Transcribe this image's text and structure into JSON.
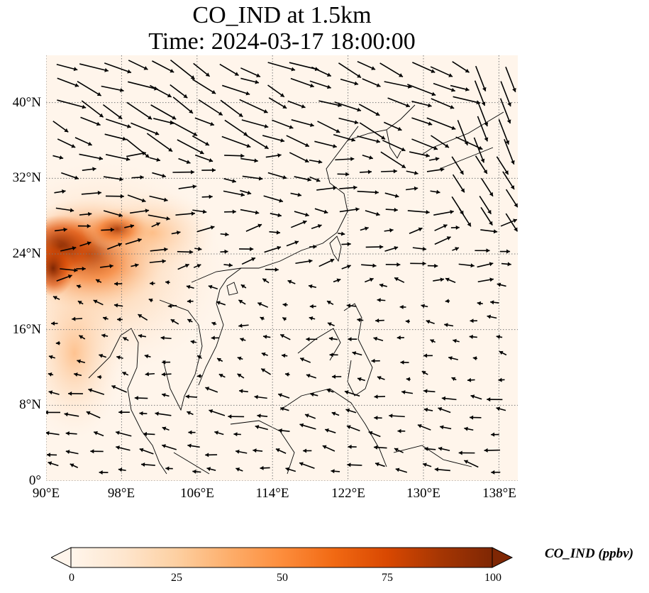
{
  "title": {
    "line1": "CO_IND at 1.5km",
    "line2": "Time: 2024-03-17 18:00:00"
  },
  "map": {
    "lon_range": [
      90,
      140
    ],
    "lat_range": [
      0,
      45
    ],
    "lon_ticks": [
      "90°E",
      "98°E",
      "106°E",
      "114°E",
      "122°E",
      "130°E",
      "138°E"
    ],
    "lat_ticks": [
      "0°",
      "8°N",
      "16°N",
      "24°N",
      "32°N",
      "40°N"
    ],
    "gridlines": true,
    "field_colormap": [
      "#fff5eb",
      "#fee6ce",
      "#fdd0a2",
      "#fdae6b",
      "#fd8d3c",
      "#f16913",
      "#d94801",
      "#a63603",
      "#7f2704"
    ],
    "coastline_color": "#000000",
    "wind_vectors": "black"
  },
  "colorbar": {
    "label": "CO_IND (ppbv)",
    "ticks": [
      "0",
      "25",
      "50",
      "75",
      "100"
    ],
    "range": [
      0,
      100
    ],
    "extend": "both"
  }
}
